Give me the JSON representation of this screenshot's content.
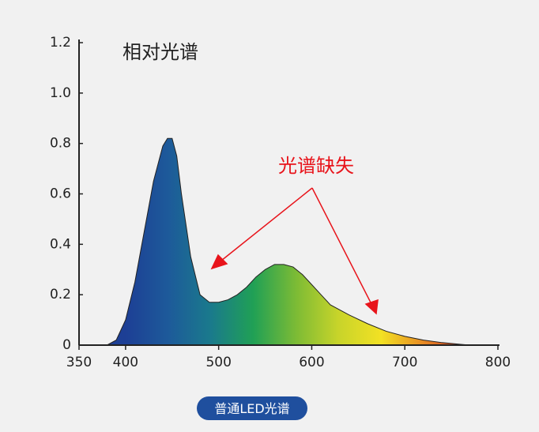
{
  "chart_data": {
    "type": "area",
    "title": "相对光谱",
    "annotation": "光谱缺失",
    "x": [
      380,
      390,
      400,
      410,
      420,
      430,
      440,
      445,
      450,
      455,
      460,
      470,
      480,
      490,
      500,
      510,
      520,
      530,
      540,
      550,
      560,
      570,
      580,
      590,
      600,
      610,
      620,
      640,
      660,
      680,
      700,
      720,
      740,
      760,
      770
    ],
    "series": [
      {
        "name": "普通LED光谱",
        "color": "#1f4f9e",
        "values": [
          0,
          0.02,
          0.1,
          0.25,
          0.45,
          0.65,
          0.79,
          0.82,
          0.82,
          0.75,
          0.6,
          0.35,
          0.2,
          0.17,
          0.17,
          0.18,
          0.2,
          0.23,
          0.27,
          0.3,
          0.32,
          0.32,
          0.31,
          0.28,
          0.24,
          0.2,
          0.16,
          0.12,
          0.085,
          0.055,
          0.035,
          0.02,
          0.01,
          0.003,
          0
        ]
      }
    ],
    "fill_colors": [
      "#1d3f95",
      "#1d5a9a",
      "#1a7a8c",
      "#20a055",
      "#7cbb35",
      "#c8d42a",
      "#f2e124",
      "#e88a24",
      "#c8301e"
    ],
    "annotation_color": "#e8141b",
    "xlim": [
      350,
      800
    ],
    "xticks": [
      350,
      400,
      500,
      600,
      700,
      800
    ],
    "ylim": [
      0,
      1.2
    ],
    "yticks": [
      0,
      0.2,
      0.4,
      0.6,
      0.8,
      {
        "value": 1.0,
        "label": "1.0"
      },
      1.2
    ]
  }
}
